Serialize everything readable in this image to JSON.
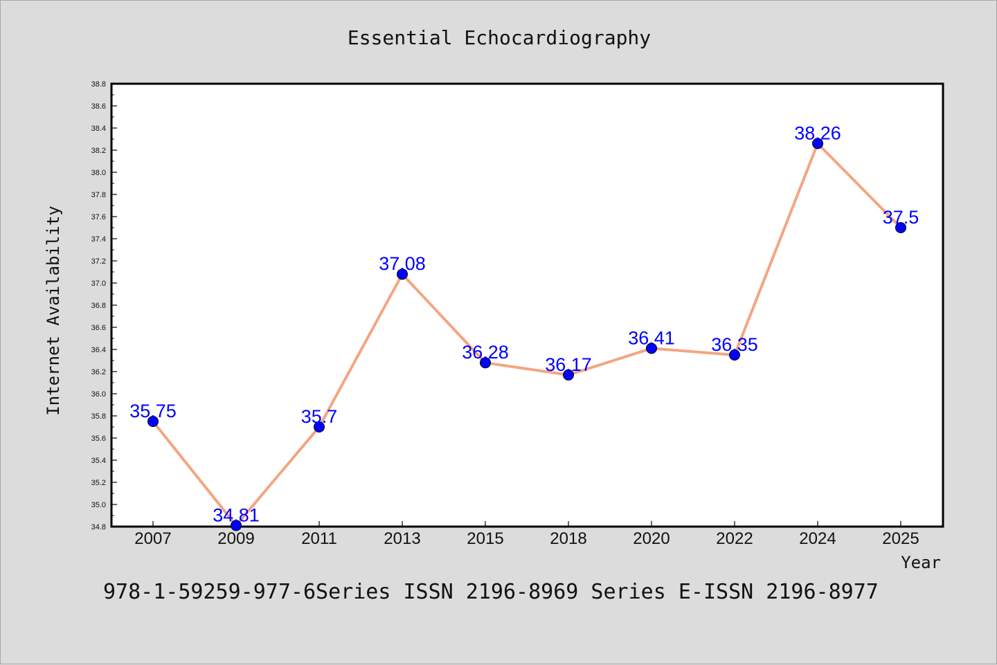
{
  "chart_data": {
    "type": "line",
    "title": "Essential Echocardiography",
    "xlabel": "Year",
    "ylabel": "Internet Availability",
    "categories": [
      "2007",
      "2009",
      "2011",
      "2013",
      "2015",
      "2018",
      "2020",
      "2022",
      "2024",
      "2025"
    ],
    "values": [
      35.75,
      34.81,
      35.7,
      37.08,
      36.28,
      36.17,
      36.41,
      36.35,
      38.26,
      37.5
    ],
    "data_labels": [
      "35.75",
      "34.81",
      "35.7",
      "37.08",
      "36.28",
      "36.17",
      "36.41",
      "36.35",
      "38.26",
      "37.5"
    ],
    "ylim": [
      34.8,
      38.8
    ],
    "yticks": [
      "34.8",
      "35.0",
      "35.2",
      "35.4",
      "35.6",
      "35.8",
      "36.0",
      "36.2",
      "36.4",
      "36.6",
      "36.8",
      "37.0",
      "37.2",
      "37.4",
      "37.6",
      "37.8",
      "38.0",
      "38.2",
      "38.4",
      "38.6",
      "38.8"
    ],
    "grid": false,
    "line_color": "#f4a582",
    "marker_color": "#0000ff",
    "label_color": "#0000ff"
  },
  "footer_text": "978-1-59259-977-6Series ISSN 2196-8969 Series E-ISSN 2196-8977"
}
